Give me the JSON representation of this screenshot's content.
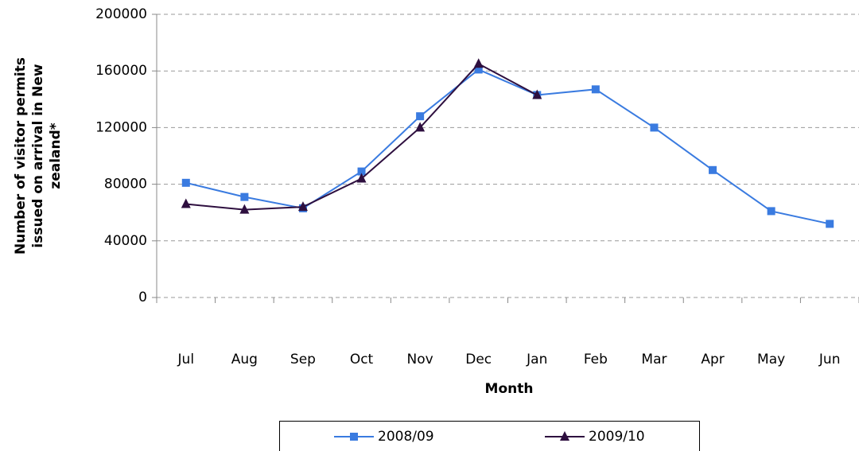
{
  "chart_data": {
    "type": "line",
    "x_label": "Month",
    "y_label": "Number of visitor permits issued on arrival in New zealand*",
    "categories": [
      "Jul",
      "Aug",
      "Sep",
      "Oct",
      "Nov",
      "Dec",
      "Jan",
      "Feb",
      "Mar",
      "Apr",
      "May",
      "Jun"
    ],
    "series": [
      {
        "name": "2008/09",
        "color": "#3a7be0",
        "marker": "square",
        "values": [
          81000,
          71000,
          63000,
          89000,
          128000,
          161000,
          143000,
          147000,
          120000,
          90000,
          61000,
          52000
        ]
      },
      {
        "name": "2009/10",
        "color": "#2e0f3f",
        "marker": "triangle",
        "values": [
          66000,
          62000,
          64000,
          84000,
          120000,
          165000,
          143000,
          null,
          null,
          null,
          null,
          null
        ]
      }
    ],
    "ylim": [
      0,
      200000
    ],
    "yticks": [
      0,
      40000,
      80000,
      120000,
      160000,
      200000
    ],
    "grid": true,
    "legend": "bottom"
  }
}
